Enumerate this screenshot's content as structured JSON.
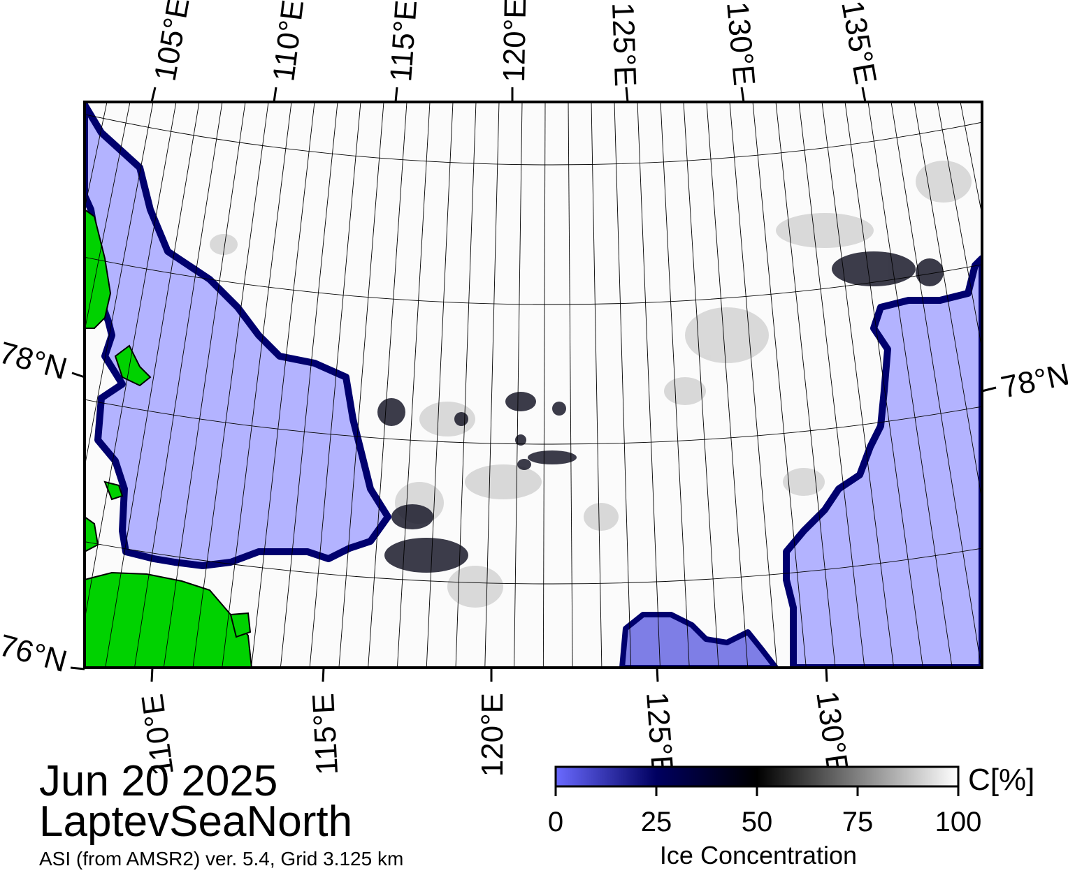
{
  "map": {
    "top_lon_labels": [
      "105°E",
      "110°E",
      "115°E",
      "120°E",
      "125°E",
      "130°E",
      "135°E"
    ],
    "bottom_lon_labels": [
      "110°E",
      "115°E",
      "120°E",
      "125°E",
      "130°E"
    ],
    "lat_labels_left": [
      "78°N",
      "76°N"
    ],
    "lat_labels_right": [
      "78°N"
    ],
    "colors": {
      "land": "#00d200",
      "open_water": "#b3b3ff",
      "ice_edge": "#00006e",
      "high_ice": "#ffffff",
      "coast_gray": "#8c8c8c"
    }
  },
  "info": {
    "date": "Jun 20 2025",
    "region": "LaptevSeaNorth",
    "product": "ASI (from AMSR2) ver. 5.4,  Grid 3.125 km"
  },
  "colorbar": {
    "unit_label": "C[%]",
    "title": "Ice Concentration",
    "ticks": [
      "0",
      "25",
      "50",
      "75",
      "100"
    ],
    "stops": [
      "#6a6aff",
      "#000060",
      "#000000",
      "#808080",
      "#ffffff"
    ]
  }
}
